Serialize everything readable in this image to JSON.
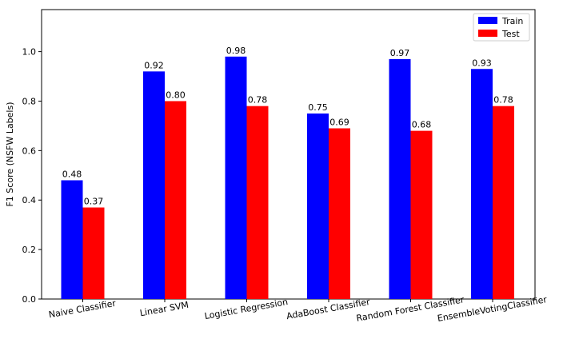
{
  "chart_data": {
    "type": "bar",
    "title": "",
    "xlabel": "",
    "ylabel": "F1 Score (NSFW Labels)",
    "ylim": [
      0,
      1.17
    ],
    "yticks": [
      "0.0",
      "0.2",
      "0.4",
      "0.6",
      "0.8",
      "1.0"
    ],
    "categories": [
      "Naive Classifier",
      "Linear SVM",
      "Logistic Regression",
      "AdaBoost Classifier",
      "Random Forest Classifier",
      "EnsembleVotingClassifier"
    ],
    "series": [
      {
        "name": "Train",
        "color": "#0000ff",
        "values": [
          0.48,
          0.92,
          0.98,
          0.75,
          0.97,
          0.93
        ],
        "labels": [
          "0.48",
          "0.92",
          "0.98",
          "0.75",
          "0.97",
          "0.93"
        ]
      },
      {
        "name": "Test",
        "color": "#ff0000",
        "values": [
          0.37,
          0.8,
          0.78,
          0.69,
          0.68,
          0.78
        ],
        "labels": [
          "0.37",
          "0.80",
          "0.78",
          "0.69",
          "0.68",
          "0.78"
        ]
      }
    ],
    "legend_position": "top-right",
    "grid": false
  }
}
